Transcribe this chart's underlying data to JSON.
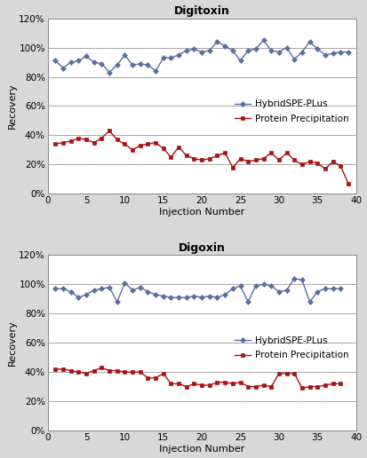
{
  "digitoxin": {
    "title": "Digitoxin",
    "hybrid_x": [
      1,
      2,
      3,
      4,
      5,
      6,
      7,
      8,
      9,
      10,
      11,
      12,
      13,
      14,
      15,
      16,
      17,
      18,
      19,
      20,
      21,
      22,
      23,
      24,
      25,
      26,
      27,
      28,
      29,
      30,
      31,
      32,
      33,
      34,
      35,
      36,
      37,
      38,
      39
    ],
    "hybrid_y": [
      0.91,
      0.86,
      0.9,
      0.91,
      0.94,
      0.9,
      0.89,
      0.83,
      0.88,
      0.95,
      0.88,
      0.89,
      0.88,
      0.84,
      0.93,
      0.93,
      0.95,
      0.98,
      0.99,
      0.97,
      0.98,
      1.04,
      1.01,
      0.98,
      0.91,
      0.98,
      0.99,
      1.05,
      0.98,
      0.97,
      1.0,
      0.92,
      0.97,
      1.04,
      0.99,
      0.95,
      0.96,
      0.97,
      0.97
    ],
    "protein_x": [
      1,
      2,
      3,
      4,
      5,
      6,
      7,
      8,
      9,
      10,
      11,
      12,
      13,
      14,
      15,
      16,
      17,
      18,
      19,
      20,
      21,
      22,
      23,
      24,
      25,
      26,
      27,
      28,
      29,
      30,
      31,
      32,
      33,
      34,
      35,
      36,
      37,
      38,
      39
    ],
    "protein_y": [
      0.34,
      0.35,
      0.36,
      0.38,
      0.37,
      0.35,
      0.38,
      0.43,
      0.37,
      0.34,
      0.3,
      0.33,
      0.34,
      0.35,
      0.31,
      0.25,
      0.32,
      0.26,
      0.24,
      0.23,
      0.24,
      0.26,
      0.28,
      0.18,
      0.24,
      0.22,
      0.23,
      0.24,
      0.28,
      0.23,
      0.28,
      0.23,
      0.2,
      0.22,
      0.21,
      0.17,
      0.22,
      0.19,
      0.07
    ],
    "ylabel": "Recovery",
    "xlabel": "Injection Number",
    "ylim": [
      0,
      1.2
    ],
    "yticks": [
      0,
      0.2,
      0.4,
      0.6,
      0.8,
      1.0,
      1.2
    ],
    "xlim": [
      0,
      40
    ],
    "xticks": [
      0,
      5,
      10,
      15,
      20,
      25,
      30,
      35,
      40
    ]
  },
  "digoxin": {
    "title": "Digoxin",
    "hybrid_x": [
      1,
      2,
      3,
      4,
      5,
      6,
      7,
      8,
      9,
      10,
      11,
      12,
      13,
      14,
      15,
      16,
      17,
      18,
      19,
      20,
      21,
      22,
      23,
      24,
      25,
      26,
      27,
      28,
      29,
      30,
      31,
      32,
      33,
      34,
      35,
      36,
      37,
      38
    ],
    "hybrid_y": [
      0.97,
      0.97,
      0.95,
      0.91,
      0.93,
      0.96,
      0.97,
      0.98,
      0.88,
      1.01,
      0.96,
      0.98,
      0.95,
      0.93,
      0.92,
      0.91,
      0.91,
      0.91,
      0.92,
      0.91,
      0.92,
      0.91,
      0.93,
      0.97,
      0.99,
      0.88,
      0.99,
      1.0,
      0.99,
      0.95,
      0.96,
      1.04,
      1.03,
      0.88,
      0.95,
      0.97,
      0.97,
      0.97
    ],
    "protein_x": [
      1,
      2,
      3,
      4,
      5,
      6,
      7,
      8,
      9,
      10,
      11,
      12,
      13,
      14,
      15,
      16,
      17,
      18,
      19,
      20,
      21,
      22,
      23,
      24,
      25,
      26,
      27,
      28,
      29,
      30,
      31,
      32,
      33,
      34,
      35,
      36,
      37,
      38
    ],
    "protein_y": [
      0.42,
      0.42,
      0.41,
      0.4,
      0.39,
      0.41,
      0.43,
      0.41,
      0.41,
      0.4,
      0.4,
      0.4,
      0.36,
      0.36,
      0.39,
      0.32,
      0.32,
      0.3,
      0.32,
      0.31,
      0.31,
      0.33,
      0.33,
      0.32,
      0.33,
      0.3,
      0.3,
      0.31,
      0.3,
      0.39,
      0.39,
      0.39,
      0.29,
      0.3,
      0.3,
      0.31,
      0.32,
      0.32
    ],
    "ylabel": "Recovery",
    "xlabel": "Injection Number",
    "ylim": [
      0,
      1.2
    ],
    "yticks": [
      0,
      0.2,
      0.4,
      0.6,
      0.8,
      1.0,
      1.2
    ],
    "xlim": [
      0,
      40
    ],
    "xticks": [
      0,
      5,
      10,
      15,
      20,
      25,
      30,
      35,
      40
    ]
  },
  "hybrid_color": "#5a6ea0",
  "protein_color": "#aa1111",
  "hybrid_label": "HybridSPE-PLus",
  "protein_label": "Protein Precipitation",
  "bg_color": "#d8d8d8",
  "plot_bg_color": "#ffffff",
  "grid_color": "#999999",
  "marker_size": 3,
  "line_width": 1.0,
  "title_fontsize": 9,
  "axis_label_fontsize": 8,
  "tick_fontsize": 7.5,
  "legend_fontsize": 7.5
}
